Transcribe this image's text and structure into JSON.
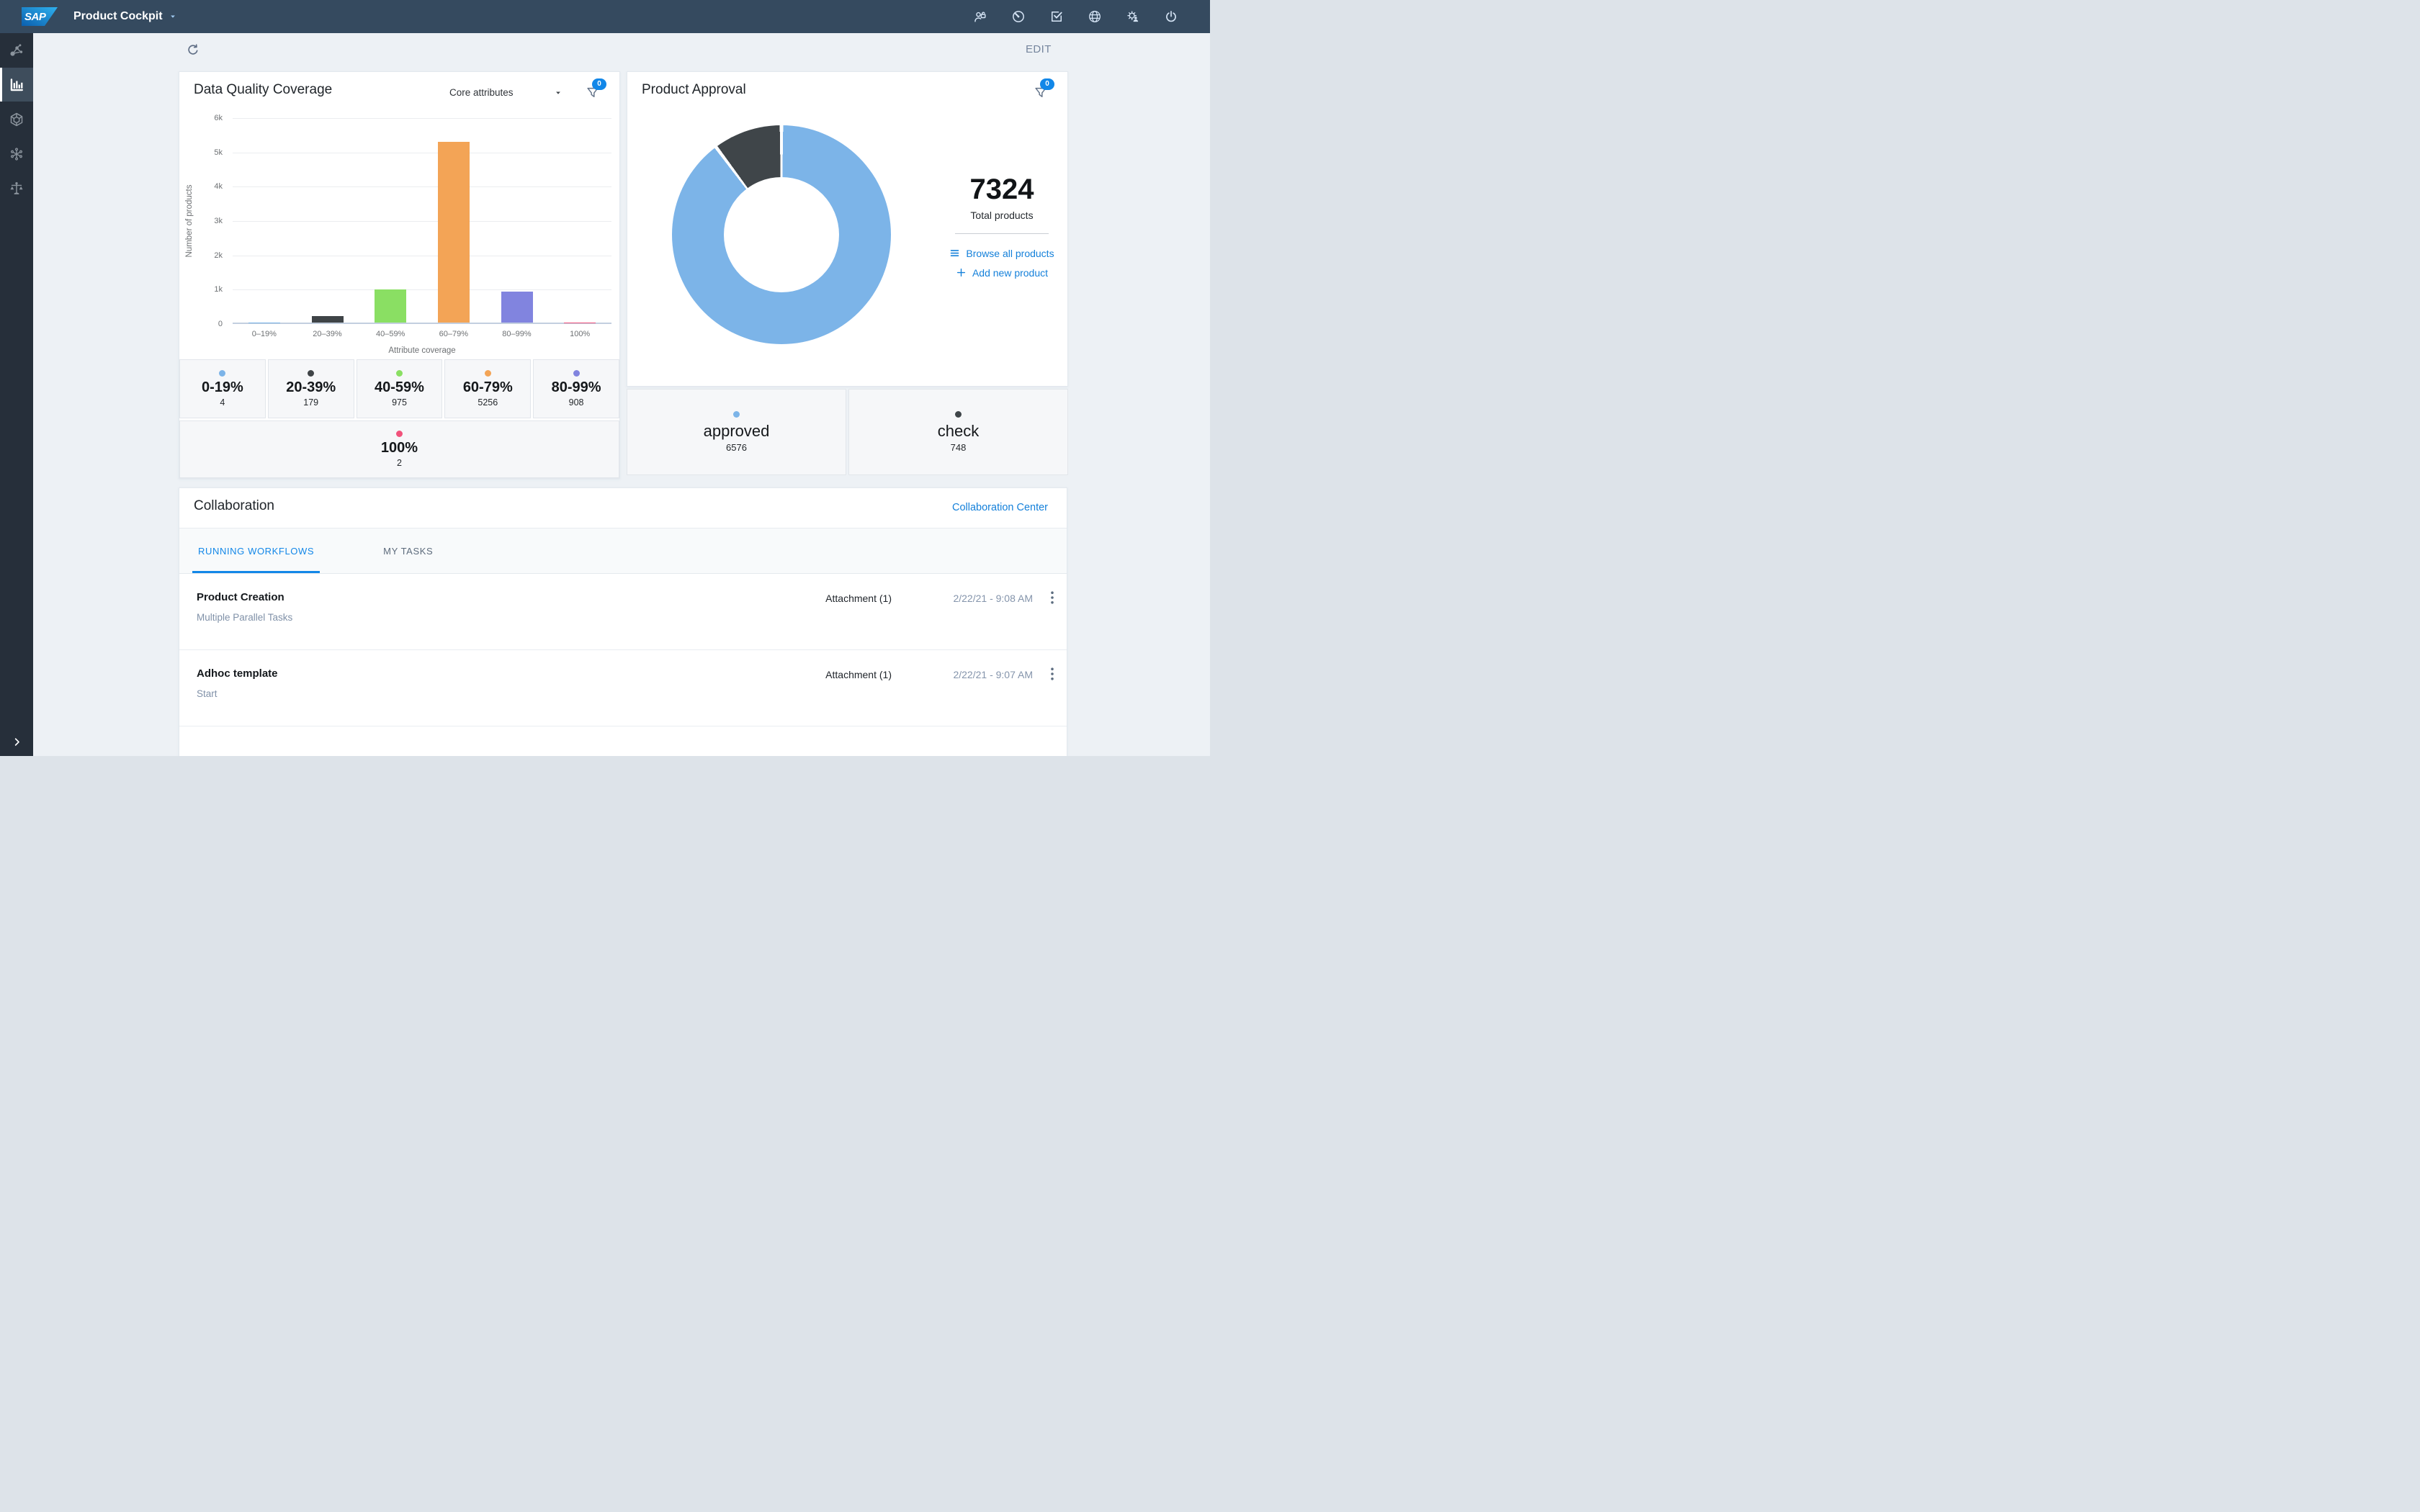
{
  "topbar": {
    "logo_text": "SAP",
    "app_title": "Product Cockpit",
    "icons": [
      {
        "name": "user-unlock-icon",
        "glyph": "user-lock"
      },
      {
        "name": "gauge-icon",
        "glyph": "gauge"
      },
      {
        "name": "task-check-icon",
        "glyph": "task-check"
      },
      {
        "name": "globe-icon",
        "glyph": "globe"
      },
      {
        "name": "user-settings-icon",
        "glyph": "gear-user"
      },
      {
        "name": "power-icon",
        "glyph": "power"
      }
    ]
  },
  "sidebar": {
    "items": [
      {
        "name": "relations",
        "icon": "molecule",
        "active": false
      },
      {
        "name": "analytics",
        "icon": "bar-chart",
        "active": true
      },
      {
        "name": "products",
        "icon": "cube",
        "active": false
      },
      {
        "name": "network",
        "icon": "hub",
        "active": false
      },
      {
        "name": "compliance",
        "icon": "scales",
        "active": false
      }
    ]
  },
  "toolbar": {
    "edit_label": "EDIT"
  },
  "data_quality": {
    "title": "Data Quality Coverage",
    "dropdown_value": "Core attributes",
    "filter_badge": "0",
    "chart_data": {
      "type": "bar",
      "title": "Data Quality Coverage",
      "categories": [
        "0–19%",
        "20–39%",
        "40–59%",
        "60–79%",
        "80–99%",
        "100%"
      ],
      "values": [
        4,
        179,
        975,
        5256,
        908,
        2
      ],
      "colors": [
        "#7cb4e8",
        "#3f4447",
        "#8adf63",
        "#f3a456",
        "#8184df",
        "#f1527b"
      ],
      "xlabel": "Attribute coverage",
      "ylabel": "Number of products",
      "ylim": [
        0,
        6000
      ],
      "yticks": [
        "0",
        "1k",
        "2k",
        "3k",
        "4k",
        "5k",
        "6k"
      ],
      "grid": true,
      "legend_position": "bottom-tiles"
    },
    "legend_tiles": [
      {
        "range": "0-19%",
        "count": "4",
        "color": "#7cb4e8"
      },
      {
        "range": "20-39%",
        "count": "179",
        "color": "#3f4447"
      },
      {
        "range": "40-59%",
        "count": "975",
        "color": "#8adf63"
      },
      {
        "range": "60-79%",
        "count": "5256",
        "color": "#f3a456"
      },
      {
        "range": "80-99%",
        "count": "908",
        "color": "#8184df"
      },
      {
        "range": "100%",
        "count": "2",
        "color": "#f1527b"
      }
    ]
  },
  "product_approval": {
    "title": "Product Approval",
    "filter_badge": "0",
    "total_value": "7324",
    "total_label": "Total products",
    "links": [
      {
        "label": "Browse all products",
        "icon": "menu"
      },
      {
        "label": "Add new product",
        "icon": "plus"
      }
    ],
    "chart_data": {
      "type": "pie",
      "donut": true,
      "slices": [
        {
          "label": "approved",
          "value": 6576,
          "pct": 89.8,
          "pct_label": "89.8 %",
          "color": "#7cb4e8"
        },
        {
          "label": "check",
          "value": 748,
          "pct": 10.2,
          "pct_label": "10.2 %",
          "color": "#3f4549"
        }
      ]
    },
    "status_tiles": [
      {
        "label": "approved",
        "count": "6576",
        "color": "#7cb4e8"
      },
      {
        "label": "check",
        "count": "748",
        "color": "#3f4549"
      }
    ]
  },
  "collaboration": {
    "title": "Collaboration",
    "center_link": "Collaboration Center",
    "tabs": [
      {
        "label": "RUNNING WORKFLOWS",
        "active": true
      },
      {
        "label": "MY TASKS",
        "active": false
      }
    ],
    "workflows": [
      {
        "title": "Product Creation",
        "subtitle": "Multiple Parallel Tasks",
        "attachment": "Attachment (1)",
        "timestamp": "2/22/21 - 9:08 AM"
      },
      {
        "title": "Adhoc template",
        "subtitle": "Start",
        "attachment": "Attachment (1)",
        "timestamp": "2/22/21 - 9:07 AM"
      }
    ]
  }
}
